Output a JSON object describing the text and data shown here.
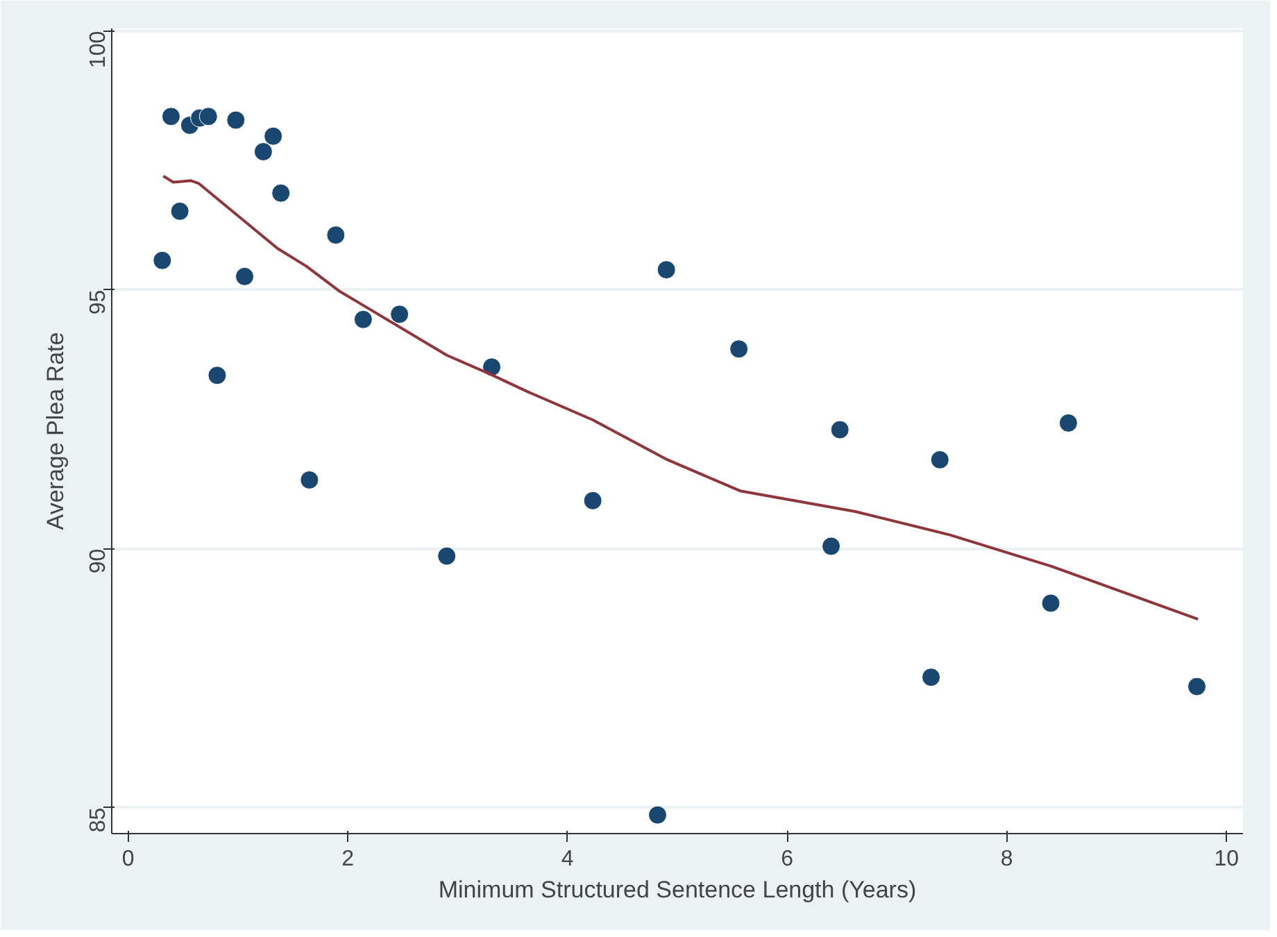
{
  "chart_data": {
    "type": "scatter",
    "xlabel": "Minimum Structured Sentence Length (Years)",
    "ylabel": "Average Plea Rate",
    "xlim": [
      -0.15,
      10.15
    ],
    "ylim": [
      84.5,
      100.05
    ],
    "xticks": [
      0,
      2,
      4,
      6,
      8,
      10
    ],
    "yticks": [
      85,
      90,
      95,
      100
    ],
    "grid": "y",
    "series": [
      {
        "marker": "circle",
        "color": "#1a476f",
        "x": [
          0.31,
          0.39,
          0.47,
          0.56,
          0.65,
          0.73,
          0.81,
          0.98,
          1.06,
          1.23,
          1.32,
          1.39,
          1.65,
          1.89,
          2.14,
          2.47,
          2.9,
          3.31,
          4.23,
          4.9,
          4.82,
          5.56,
          6.48,
          6.4,
          7.39,
          7.31,
          8.56,
          8.4,
          9.73
        ],
        "values": [
          95.57,
          98.35,
          96.52,
          98.18,
          98.32,
          98.35,
          93.35,
          98.28,
          95.26,
          97.67,
          97.97,
          96.87,
          91.33,
          96.06,
          94.43,
          94.53,
          89.86,
          93.51,
          90.93,
          95.39,
          84.86,
          93.86,
          92.3,
          90.05,
          91.72,
          87.52,
          92.43,
          88.95,
          87.34
        ]
      },
      {
        "type": "line",
        "color": "#90353b",
        "x": [
          0.32,
          0.41,
          0.57,
          0.64,
          1.36,
          1.62,
          1.92,
          2.9,
          3.29,
          3.63,
          4.23,
          4.91,
          5.57,
          6.62,
          7.48,
          8.41,
          9.74
        ],
        "values": [
          97.2,
          97.08,
          97.11,
          97.06,
          95.8,
          95.46,
          94.98,
          93.74,
          93.38,
          93.04,
          92.49,
          91.72,
          91.12,
          90.72,
          90.27,
          89.66,
          88.64
        ]
      }
    ]
  }
}
